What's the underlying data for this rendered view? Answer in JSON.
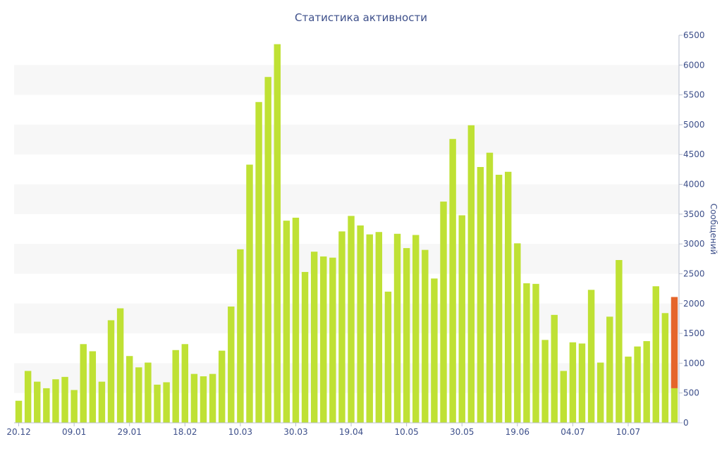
{
  "chart_data": {
    "type": "bar",
    "title": "Статистика активности",
    "ylabel": "Сообщений",
    "xlabel": "",
    "ylim": [
      0,
      6500
    ],
    "yticks": [
      0,
      500,
      1000,
      1500,
      2000,
      2500,
      3000,
      3500,
      4000,
      4500,
      5000,
      5500,
      6000,
      6500
    ],
    "xtick_labels": [
      {
        "label": "20.12",
        "index": 0
      },
      {
        "label": "09.01",
        "index": 6
      },
      {
        "label": "29.01",
        "index": 12
      },
      {
        "label": "18.02",
        "index": 18
      },
      {
        "label": "10.03",
        "index": 24
      },
      {
        "label": "30.03",
        "index": 30
      },
      {
        "label": "19.04",
        "index": 36
      },
      {
        "label": "10.05",
        "index": 42
      },
      {
        "label": "30.05",
        "index": 48
      },
      {
        "label": "19.06",
        "index": 54
      },
      {
        "label": "04.07",
        "index": 60
      },
      {
        "label": "10.07",
        "index": 66
      }
    ],
    "grid": "horizontal bands",
    "y_axis_position": "right",
    "colors": {
      "bar": "#bfe134",
      "highlight": "#e5652b",
      "text": "#3d4f8a",
      "band": "#f7f7f7"
    },
    "values": [
      370,
      870,
      690,
      580,
      730,
      770,
      550,
      1320,
      1200,
      690,
      1720,
      1920,
      1120,
      930,
      1010,
      640,
      680,
      1220,
      1320,
      820,
      780,
      820,
      1210,
      1950,
      2910,
      4330,
      5380,
      5800,
      6350,
      3390,
      3440,
      2530,
      2870,
      2790,
      2770,
      3210,
      3470,
      3310,
      3160,
      3200,
      2200,
      3170,
      2930,
      3150,
      2900,
      2420,
      3710,
      4760,
      3480,
      4990,
      4290,
      4530,
      4160,
      4210,
      3010,
      2340,
      2330,
      1390,
      1810,
      870,
      1350,
      1330,
      2230,
      1010,
      1780,
      2730,
      1110,
      1280,
      1370,
      2290,
      1840,
      2110
    ],
    "last_bar_split": {
      "base": 580,
      "total": 2110
    }
  }
}
